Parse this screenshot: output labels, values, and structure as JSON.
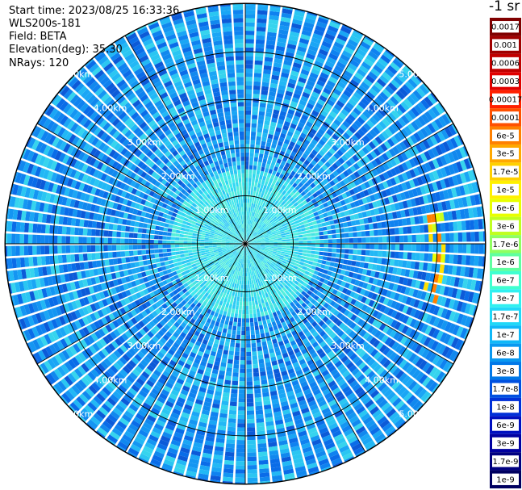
{
  "header": {
    "start_time": "Start time: 2023/08/25 16:33:36",
    "device": "WLS200s-181",
    "field": "Field: BETA",
    "elevation": "Elevation(deg): 35.30",
    "nrays": "NRays: 120"
  },
  "range_labels": [
    "1.00km",
    "2.00km",
    "3.00km",
    "4.00km",
    "5.00km"
  ],
  "colorbar": {
    "title": "-1 sr",
    "levels": [
      {
        "label": "0.0017",
        "color": "#800000"
      },
      {
        "label": "0.001",
        "color": "#a00000"
      },
      {
        "label": "0.0006",
        "color": "#c00000"
      },
      {
        "label": "0.0003",
        "color": "#e00000"
      },
      {
        "label": "0.00017",
        "color": "#ff2000"
      },
      {
        "label": "0.0001",
        "color": "#ff5000"
      },
      {
        "label": "6e-5",
        "color": "#ff8000"
      },
      {
        "label": "3e-5",
        "color": "#ffa800"
      },
      {
        "label": "1.7e-5",
        "color": "#ffd000"
      },
      {
        "label": "1e-5",
        "color": "#fff000"
      },
      {
        "label": "6e-6",
        "color": "#e8ff00"
      },
      {
        "label": "3e-6",
        "color": "#c0ff20"
      },
      {
        "label": "1.7e-6",
        "color": "#90ff60"
      },
      {
        "label": "1e-6",
        "color": "#60ffa0"
      },
      {
        "label": "6e-7",
        "color": "#40ffd0"
      },
      {
        "label": "3e-7",
        "color": "#30f0f0"
      },
      {
        "label": "1.7e-7",
        "color": "#20d8f8"
      },
      {
        "label": "1e-7",
        "color": "#10b8f8"
      },
      {
        "label": "6e-8",
        "color": "#0898f0"
      },
      {
        "label": "3e-8",
        "color": "#0078e8"
      },
      {
        "label": "1.7e-8",
        "color": "#0050e0"
      },
      {
        "label": "1e-8",
        "color": "#0030d8"
      },
      {
        "label": "6e-9",
        "color": "#0010c0"
      },
      {
        "label": "3e-9",
        "color": "#0000a0"
      },
      {
        "label": "1.7e-9",
        "color": "#000080"
      },
      {
        "label": "1e-9",
        "color": "#000060"
      }
    ]
  }
}
